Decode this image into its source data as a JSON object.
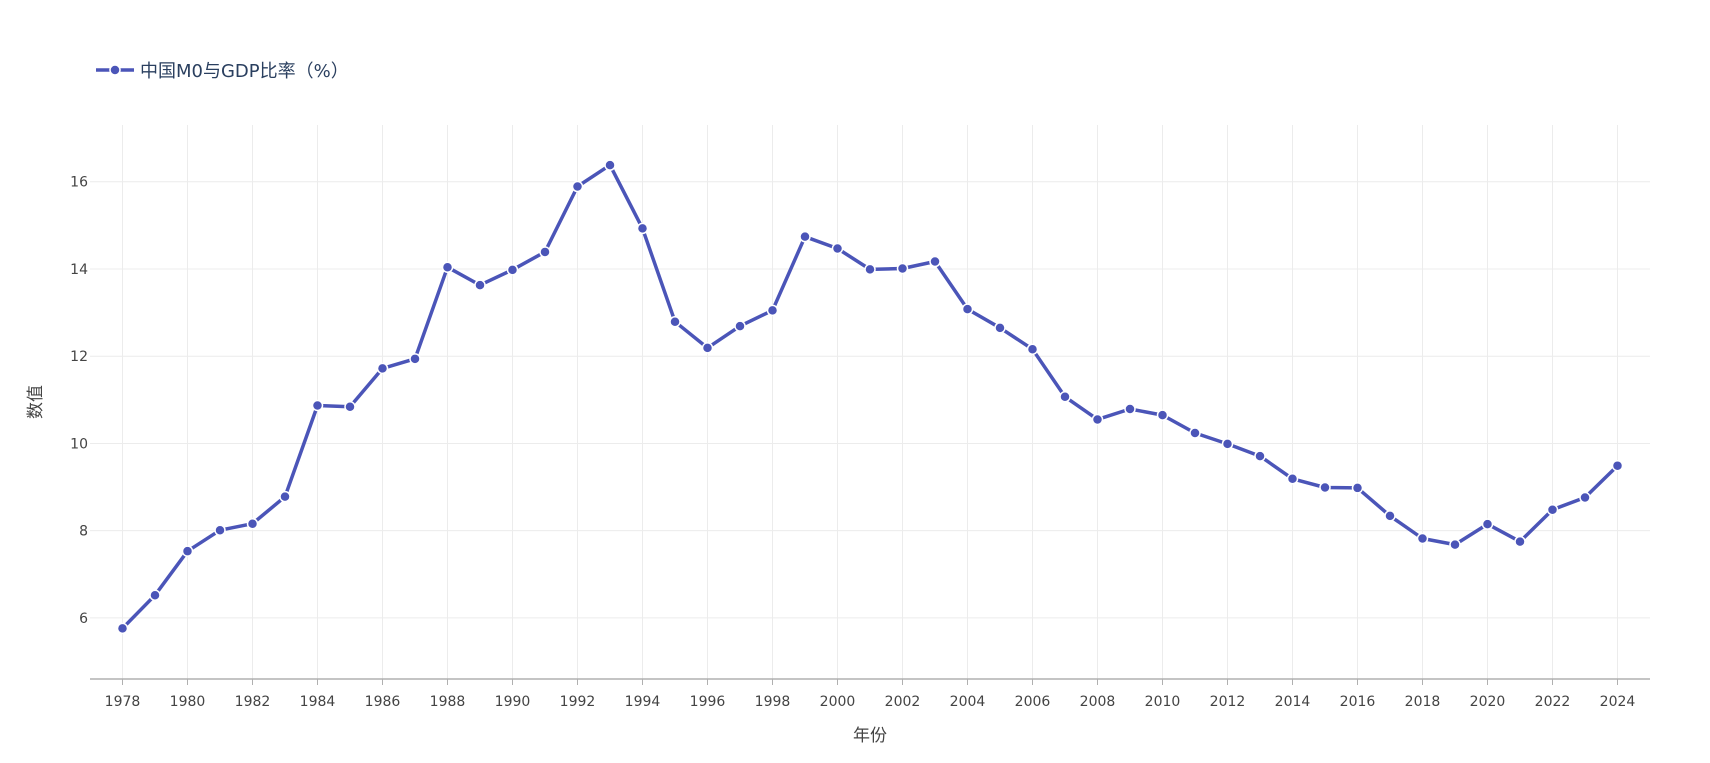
{
  "chart_data": {
    "type": "line",
    "xlabel": "年份",
    "ylabel": "数值",
    "xlim": [
      1977,
      2025
    ],
    "ylim": [
      4.6,
      17.3
    ],
    "yticks": [
      6,
      8,
      10,
      12,
      14,
      16
    ],
    "xticks": [
      1978,
      1980,
      1982,
      1984,
      1986,
      1988,
      1990,
      1992,
      1994,
      1996,
      1998,
      2000,
      2002,
      2004,
      2006,
      2008,
      2010,
      2012,
      2014,
      2016,
      2018,
      2020,
      2022,
      2024
    ],
    "grid": true,
    "legend_position": "top-left",
    "colors": {
      "line": "#4b55b8",
      "grid": "#ececec",
      "axis": "#b0b0b0",
      "marker_edge": "#ffffff"
    },
    "series": [
      {
        "name": "中国M0与GDP比率（%）",
        "x": [
          1978,
          1979,
          1980,
          1981,
          1982,
          1983,
          1984,
          1985,
          1986,
          1987,
          1988,
          1989,
          1990,
          1991,
          1992,
          1993,
          1994,
          1995,
          1996,
          1997,
          1998,
          1999,
          2000,
          2001,
          2002,
          2003,
          2004,
          2005,
          2006,
          2007,
          2008,
          2009,
          2010,
          2011,
          2012,
          2013,
          2014,
          2015,
          2016,
          2017,
          2018,
          2019,
          2020,
          2021,
          2022,
          2023,
          2024
        ],
        "values": [
          5.76,
          6.52,
          7.53,
          8.01,
          8.16,
          8.78,
          10.87,
          10.84,
          11.72,
          11.94,
          14.04,
          13.63,
          13.98,
          14.39,
          15.89,
          16.38,
          14.93,
          12.79,
          12.19,
          12.69,
          13.05,
          14.74,
          14.47,
          13.99,
          14.01,
          14.17,
          13.08,
          12.65,
          12.16,
          11.07,
          10.55,
          10.79,
          10.65,
          10.24,
          9.99,
          9.71,
          9.19,
          8.99,
          8.98,
          8.34,
          7.82,
          7.68,
          8.15,
          7.75,
          8.48,
          8.76,
          9.49
        ]
      }
    ]
  }
}
